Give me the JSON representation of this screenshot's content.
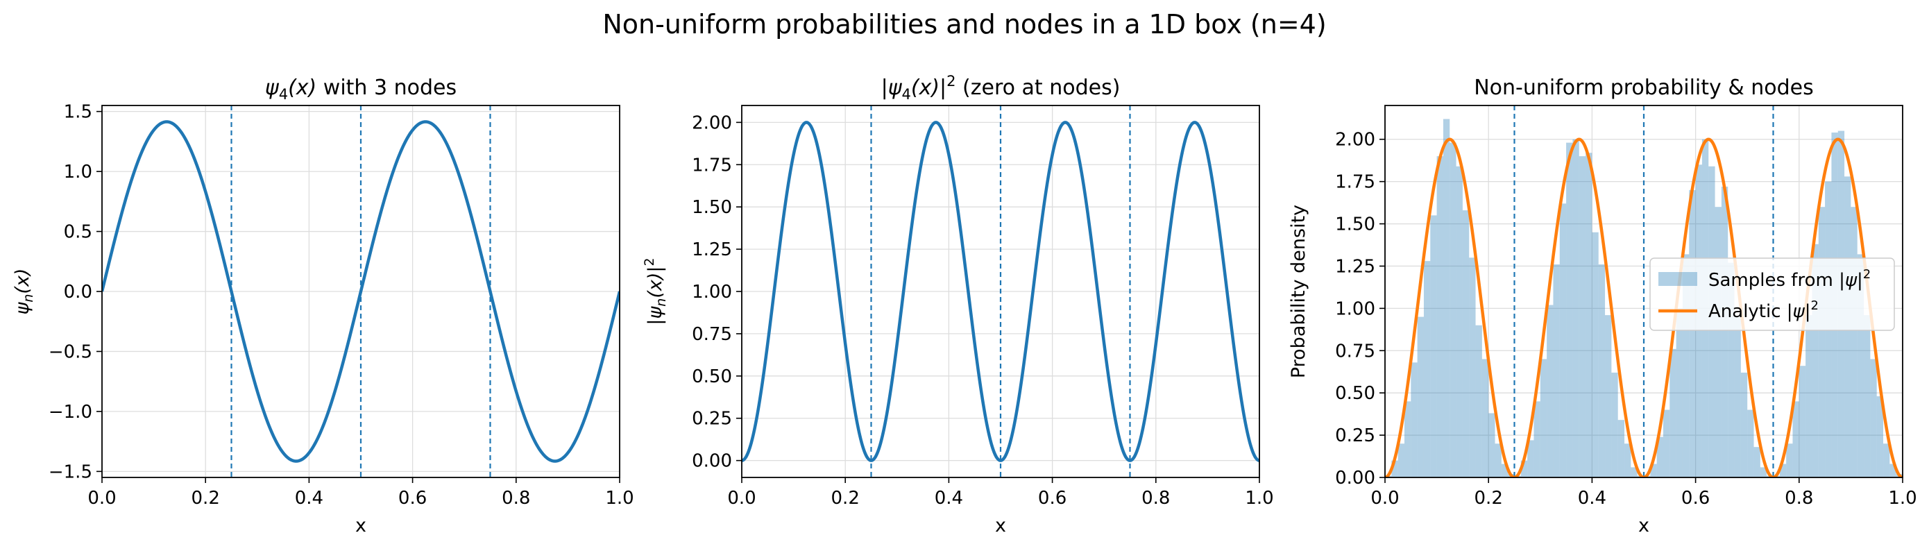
{
  "figure": {
    "title": "Non-uniform probabilities and nodes in a 1D box (n=4)"
  },
  "chart_data": [
    {
      "type": "line",
      "title": "ψ4(x) with 3 nodes",
      "xlabel": "x",
      "ylabel": "ψn(x)",
      "xlim": [
        0.0,
        1.0
      ],
      "ylim": [
        -1.55,
        1.55
      ],
      "x_ticks": [
        "0.0",
        "0.2",
        "0.4",
        "0.6",
        "0.8",
        "1.0"
      ],
      "y_ticks": [
        "−1.5",
        "−1.0",
        "−0.5",
        "0.0",
        "0.5",
        "1.0",
        "1.5"
      ],
      "grid": true,
      "function": "sqrt(2)*sin(4*pi*x)",
      "nodes": [
        0.25,
        0.5,
        0.75
      ],
      "series": [
        {
          "x": [
            0,
            0.0625,
            0.125,
            0.1875,
            0.25,
            0.3125,
            0.375,
            0.4375,
            0.5,
            0.5625,
            0.625,
            0.6875,
            0.75,
            0.8125,
            0.875,
            0.9375,
            1.0
          ],
          "values": [
            0,
            1.0,
            1.414,
            1.0,
            0,
            -1.0,
            -1.414,
            -1.0,
            0,
            1.0,
            1.414,
            1.0,
            0,
            -1.0,
            -1.414,
            -1.0,
            0
          ]
        }
      ]
    },
    {
      "type": "line",
      "title": "|ψ4(x)|² (zero at nodes)",
      "xlabel": "x",
      "ylabel": "|ψn(x)|²",
      "xlim": [
        0.0,
        1.0
      ],
      "ylim": [
        -0.1,
        2.1
      ],
      "x_ticks": [
        "0.0",
        "0.2",
        "0.4",
        "0.6",
        "0.8",
        "1.0"
      ],
      "y_ticks": [
        "0.00",
        "0.25",
        "0.50",
        "0.75",
        "1.00",
        "1.25",
        "1.50",
        "1.75",
        "2.00"
      ],
      "grid": true,
      "function": "2*sin(4*pi*x)^2",
      "nodes": [
        0.25,
        0.5,
        0.75
      ],
      "series": [
        {
          "x": [
            0,
            0.0625,
            0.125,
            0.1875,
            0.25,
            0.3125,
            0.375,
            0.4375,
            0.5,
            0.5625,
            0.625,
            0.6875,
            0.75,
            0.8125,
            0.875,
            0.9375,
            1.0
          ],
          "values": [
            0,
            1.0,
            2.0,
            1.0,
            0,
            1.0,
            2.0,
            1.0,
            0,
            1.0,
            2.0,
            1.0,
            0,
            1.0,
            2.0,
            1.0,
            0
          ]
        }
      ]
    },
    {
      "type": "bar",
      "title": "Non-uniform probability & nodes",
      "xlabel": "x",
      "ylabel": "Probability density",
      "xlim": [
        0.0,
        1.0
      ],
      "ylim": [
        0.0,
        2.2
      ],
      "x_ticks": [
        "0.0",
        "0.2",
        "0.4",
        "0.6",
        "0.8",
        "1.0"
      ],
      "y_ticks": [
        "0.00",
        "0.25",
        "0.50",
        "0.75",
        "1.00",
        "1.25",
        "1.50",
        "1.75",
        "2.00"
      ],
      "grid": true,
      "legend_position": "center-right",
      "nodes": [
        0.25,
        0.5,
        0.75
      ],
      "histogram": {
        "name": "Samples from |ψ|²",
        "color": "#1f77b4",
        "bins": 80,
        "bin_edges_range": [
          0.0,
          1.0
        ],
        "values": [
          0.01,
          0.1,
          0.2,
          0.45,
          0.68,
          0.95,
          1.28,
          1.55,
          1.9,
          2.12,
          1.98,
          1.84,
          1.58,
          1.3,
          0.9,
          0.7,
          0.38,
          0.2,
          0.08,
          0.02,
          0.01,
          0.1,
          0.22,
          0.45,
          0.7,
          1.02,
          1.26,
          1.62,
          1.98,
          2.0,
          1.9,
          1.92,
          1.45,
          1.26,
          0.96,
          0.62,
          0.34,
          0.2,
          0.06,
          0.01,
          0.01,
          0.08,
          0.24,
          0.4,
          0.76,
          1.0,
          1.32,
          1.7,
          1.85,
          2.0,
          1.84,
          1.6,
          1.72,
          1.27,
          0.95,
          0.62,
          0.4,
          0.18,
          0.06,
          0.01,
          0.01,
          0.08,
          0.2,
          0.45,
          0.66,
          0.96,
          1.38,
          1.6,
          1.75,
          2.04,
          2.05,
          1.78,
          1.6,
          1.32,
          0.96,
          0.7,
          0.48,
          0.2,
          0.08,
          0.02
        ]
      },
      "series": [
        {
          "name": "Analytic |ψ|²",
          "color": "#ff7f0e",
          "function": "2*sin(4*pi*x)^2",
          "x": [
            0,
            0.0625,
            0.125,
            0.1875,
            0.25,
            0.3125,
            0.375,
            0.4375,
            0.5,
            0.5625,
            0.625,
            0.6875,
            0.75,
            0.8125,
            0.875,
            0.9375,
            1.0
          ],
          "values": [
            0,
            1.0,
            2.0,
            1.0,
            0,
            1.0,
            2.0,
            1.0,
            0,
            1.0,
            2.0,
            1.0,
            0,
            1.0,
            2.0,
            1.0,
            0
          ]
        }
      ],
      "legend": [
        "Samples from |ψ|²",
        "Analytic |ψ|²"
      ]
    }
  ],
  "colors": {
    "line": "#1f77b4",
    "node": "#1f77b4",
    "analytic": "#ff7f0e",
    "histogram": "#1f77b4",
    "grid": "#dddddd"
  }
}
